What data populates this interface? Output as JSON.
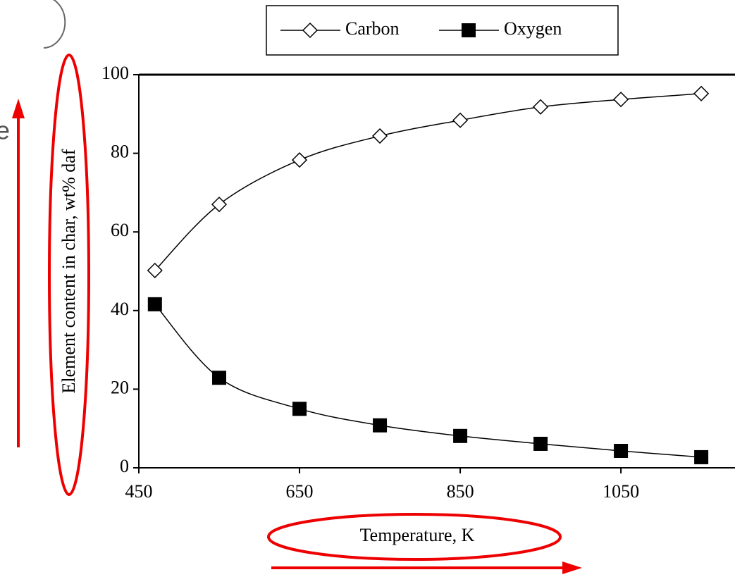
{
  "chart_data": {
    "type": "line",
    "x_label": "Temperature, K",
    "y_label": "Element content in char, wt% daf",
    "annotation": "e",
    "x": [
      470,
      550,
      650,
      750,
      850,
      950,
      1050,
      1150
    ],
    "series": [
      {
        "name": "Carbon",
        "color": "#000000",
        "marker": "diamond-open",
        "values": [
          50.2,
          67,
          78.3,
          84.4,
          88.4,
          91.8,
          93.7,
          95.2
        ]
      },
      {
        "name": "Oxygen",
        "color": "#000000",
        "marker": "square-filled",
        "values": [
          41.6,
          22.9,
          15,
          10.8,
          8.1,
          6.1,
          4.3,
          2.7
        ]
      }
    ],
    "xlim": [
      450,
      1192
    ],
    "xticks": [
      450,
      650,
      850,
      1050
    ],
    "ylim": [
      0,
      100
    ],
    "yticks": [
      0,
      20,
      40,
      60,
      80,
      100
    ],
    "legend": "top"
  }
}
